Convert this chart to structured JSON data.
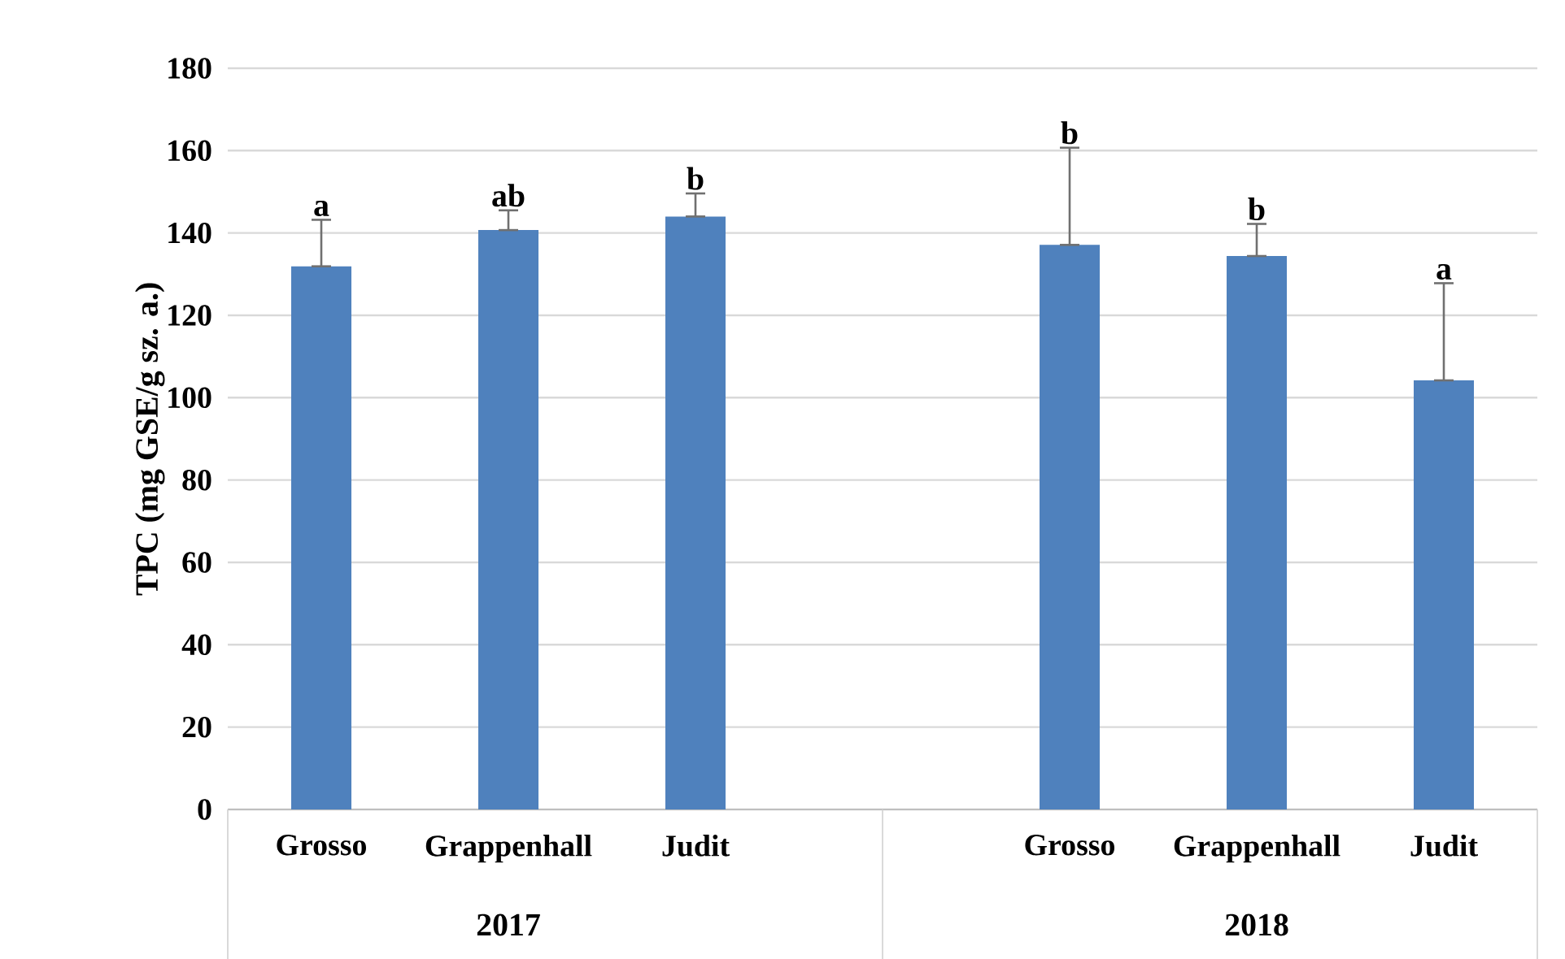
{
  "chart_data": {
    "type": "bar",
    "ylabel": "TPC (mg GSE/g sz. a.)",
    "categories": [
      "Grosso",
      "Grappenhall",
      "Judit",
      null,
      "Grosso",
      "Grappenhall",
      "Judit"
    ],
    "values": [
      131.9,
      140.7,
      144.0,
      null,
      137.1,
      134.4,
      104.2
    ],
    "errors": [
      [
        131.9,
        143.2
      ],
      [
        140.7,
        145.5
      ],
      [
        144.0,
        149.6
      ],
      null,
      [
        137.1,
        160.7
      ],
      [
        134.4,
        142.2
      ],
      [
        104.2,
        127.8
      ]
    ],
    "color": "#4f81bd",
    "ylim": [
      0,
      180
    ],
    "yticks": [
      0,
      20,
      40,
      60,
      80,
      100,
      120,
      140,
      160,
      180
    ],
    "grid": "y",
    "annotations": [
      "a",
      "ab",
      "b",
      "b",
      "b",
      "a",
      "2017",
      "2018"
    ]
  }
}
